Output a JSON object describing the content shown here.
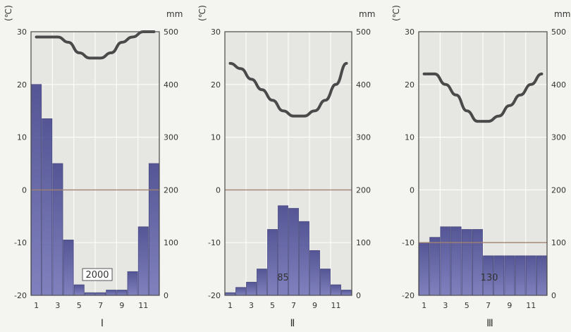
{
  "colors": {
    "bar": "#6f70b8",
    "bar_dark": "#3c3d88",
    "temp_line": "#4a4a4a",
    "plot_bg": "#e6e6e2",
    "grid": "#ffffff",
    "ref_line": "#a08070"
  },
  "chart_data": [
    {
      "type": "bar+line",
      "label": "Ⅰ",
      "left_axis_unit": "(℃)",
      "right_axis_unit": "mm",
      "left_ticks": [
        "30",
        "20",
        "10",
        "0",
        "-10",
        "-20"
      ],
      "right_ticks": [
        "500",
        "400",
        "300",
        "200",
        "100",
        "0"
      ],
      "x_tick_labels": [
        "1",
        "3",
        "5",
        "7",
        "9",
        "11"
      ],
      "temp_ylim": [
        -20,
        30
      ],
      "precip_ylim": [
        0,
        500
      ],
      "temperature": [
        29,
        29,
        29,
        28,
        26,
        25,
        25,
        26,
        28,
        29,
        30,
        30
      ],
      "precipitation": [
        400,
        335,
        250,
        105,
        20,
        5,
        5,
        10,
        10,
        45,
        130,
        250
      ],
      "annotation": "2000"
    },
    {
      "type": "bar+line",
      "label": "Ⅱ",
      "left_axis_unit": "(℃)",
      "right_axis_unit": "mm",
      "left_ticks": [
        "30",
        "20",
        "10",
        "0",
        "-10",
        "-20"
      ],
      "right_ticks": [
        "500",
        "400",
        "300",
        "200",
        "100",
        "0"
      ],
      "x_tick_labels": [
        "1",
        "3",
        "5",
        "7",
        "9",
        "11"
      ],
      "temp_ylim": [
        -20,
        30
      ],
      "precip_ylim": [
        0,
        500
      ],
      "temperature": [
        24,
        23,
        21,
        19,
        17,
        15,
        14,
        14,
        15,
        17,
        20,
        24
      ],
      "precipitation": [
        5,
        15,
        25,
        50,
        125,
        170,
        165,
        140,
        85,
        50,
        20,
        10
      ],
      "annotation": "85"
    },
    {
      "type": "bar+line",
      "label": "Ⅲ",
      "left_axis_unit": "(℃)",
      "right_axis_unit": "mm",
      "left_ticks": [
        "30",
        "20",
        "10",
        "0",
        "-10",
        "-20"
      ],
      "right_ticks": [
        "500",
        "400",
        "300",
        "200",
        "100",
        "0"
      ],
      "x_tick_labels": [
        "1",
        "3",
        "5",
        "7",
        "9",
        "11"
      ],
      "temp_ylim": [
        -20,
        30
      ],
      "precip_ylim": [
        0,
        500
      ],
      "temperature": [
        22,
        22,
        20,
        18,
        15,
        13,
        13,
        14,
        16,
        18,
        20,
        22
      ],
      "precipitation": [
        100,
        110,
        130,
        130,
        125,
        125,
        75,
        75,
        75,
        75,
        75,
        75
      ],
      "annotation": "130"
    }
  ]
}
